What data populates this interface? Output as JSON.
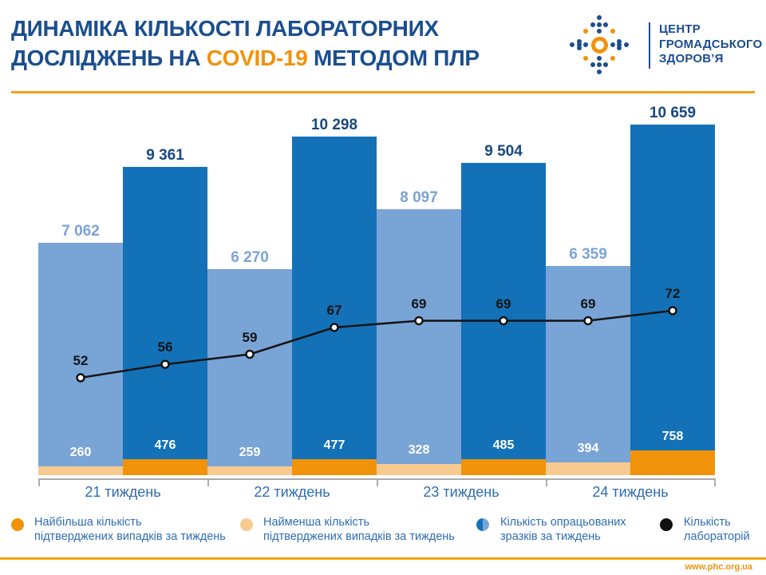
{
  "header": {
    "title_line1": "ДИНАМІКА КІЛЬКОСТІ ЛАБОРАТОРНИХ",
    "title_line2_pre": "ДОСЛІДЖЕНЬ НА ",
    "title_highlight": "COVID-19",
    "title_line2_post": " МЕТОДОМ ПЛР",
    "logo_lines": [
      "ЦЕНТР",
      "ГРОМАДСЬКОГО",
      "ЗДОРОВ’Я"
    ]
  },
  "footer": {
    "url": "www.phc.org.ua"
  },
  "colors": {
    "navy": "#1B4E8E",
    "accent_orange": "#F0920E",
    "bar_light": "#79A4D6",
    "bar_dark": "#1371B8",
    "seg_max": "#F0930A",
    "seg_min": "#F8CA90",
    "label_light": "#7BA3D4",
    "label_dark": "#17487F",
    "axis_gray": "#ABABAB",
    "text_blue": "#2E6DB4",
    "line_black": "#141414",
    "footer_line_top": "#EF8C00",
    "footer_line_bottom": "#FFC20E"
  },
  "chart_data": {
    "type": "bar",
    "title": "ДИНАМІКА КІЛЬКОСТІ ЛАБОРАТОРНИХ ДОСЛІДЖЕНЬ НА COVID-19 МЕТОДОМ ПЛР",
    "week_groups": [
      "21 тиждень",
      "22 тиждень",
      "23 тиждень",
      "24 тиждень"
    ],
    "bars": [
      {
        "week": "21 тиждень",
        "shade": "light",
        "samples": 7062,
        "confirmed": 260,
        "confirmed_kind": "min"
      },
      {
        "week": "21 тиждень",
        "shade": "dark",
        "samples": 9361,
        "confirmed": 476,
        "confirmed_kind": "max"
      },
      {
        "week": "22 тиждень",
        "shade": "light",
        "samples": 6270,
        "confirmed": 259,
        "confirmed_kind": "min"
      },
      {
        "week": "22 тиждень",
        "shade": "dark",
        "samples": 10298,
        "confirmed": 477,
        "confirmed_kind": "max"
      },
      {
        "week": "23 тиждень",
        "shade": "light",
        "samples": 8097,
        "confirmed": 328,
        "confirmed_kind": "min"
      },
      {
        "week": "23 тиждень",
        "shade": "dark",
        "samples": 9504,
        "confirmed": 485,
        "confirmed_kind": "max"
      },
      {
        "week": "24 тиждень",
        "shade": "light",
        "samples": 6359,
        "confirmed": 394,
        "confirmed_kind": "min"
      },
      {
        "week": "24 тиждень",
        "shade": "dark",
        "samples": 10659,
        "confirmed": 758,
        "confirmed_kind": "max"
      }
    ],
    "labs_line": [
      52,
      56,
      59,
      67,
      69,
      69,
      69,
      72
    ],
    "series": [
      {
        "name": "Кількість опрацьованих зразків за тиждень",
        "values": [
          7062,
          9361,
          6270,
          10298,
          8097,
          9504,
          6359,
          10659
        ]
      },
      {
        "name": "Підтверджені випадки за тиждень (мін/макс)",
        "values": [
          260,
          476,
          259,
          477,
          328,
          485,
          394,
          758
        ]
      },
      {
        "name": "Кількість лабораторій",
        "values": [
          52,
          56,
          59,
          67,
          69,
          69,
          69,
          72
        ]
      }
    ],
    "ylim": [
      0,
      11000
    ],
    "grid": false,
    "legend_position": "bottom",
    "legend": [
      {
        "swatch": "max",
        "line1": "Найбільша кількість",
        "line2": "підтверджених випадків за тиждень"
      },
      {
        "swatch": "min",
        "line1": "Найменша кількість",
        "line2": "підтверджених випадків за тиждень"
      },
      {
        "swatch": "samples",
        "line1": "Кількість опрацьованих",
        "line2": "зразків за тиждень"
      },
      {
        "swatch": "labs",
        "line1": "Кількість",
        "line2": "лабораторій"
      }
    ]
  }
}
